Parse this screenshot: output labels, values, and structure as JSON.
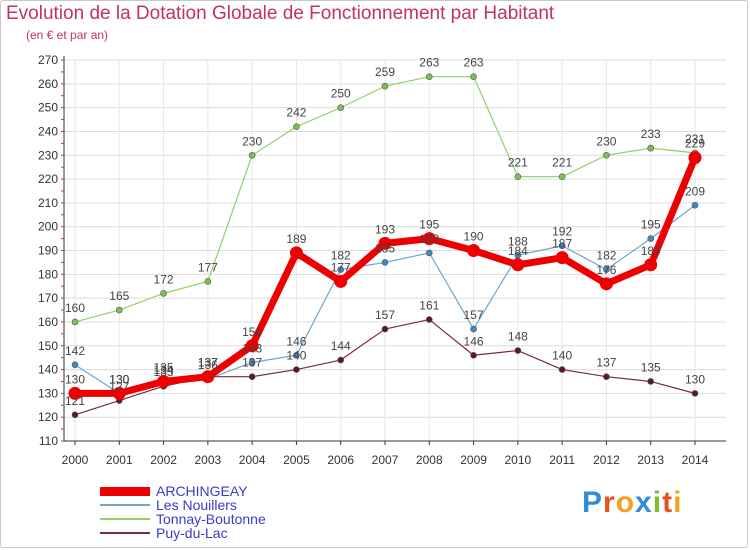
{
  "title": "Evolution de la Dotation Globale de Fonctionnement par Habitant",
  "subtitle": "(en € et par an)",
  "brand": {
    "text": "Proxiti",
    "letters": [
      {
        "ch": "P",
        "color": "#2f8fd6"
      },
      {
        "ch": "r",
        "color": "#e8521f"
      },
      {
        "ch": "o",
        "color": "#f4a11d"
      },
      {
        "ch": "x",
        "color": "#2f8fd6"
      },
      {
        "ch": "i",
        "color": "#7cbd2a"
      },
      {
        "ch": "t",
        "color": "#e8521f"
      },
      {
        "ch": "i",
        "color": "#f4a11d"
      }
    ]
  },
  "chart_data": {
    "type": "line",
    "x": [
      2000,
      2001,
      2002,
      2003,
      2004,
      2005,
      2006,
      2007,
      2008,
      2009,
      2010,
      2011,
      2012,
      2013,
      2014
    ],
    "ylim": [
      110,
      270
    ],
    "yticks": [
      110,
      120,
      130,
      140,
      150,
      160,
      170,
      180,
      190,
      200,
      210,
      220,
      230,
      240,
      250,
      260,
      270
    ],
    "grid": true,
    "legend_position": "bottom-left",
    "series": [
      {
        "name": "Tonnay-Boutonne",
        "color": "#8fd16b",
        "line_width": 1.2,
        "marker_color": "#7cc04f",
        "values": [
          160,
          165,
          172,
          177,
          230,
          242,
          250,
          259,
          263,
          263,
          221,
          221,
          230,
          233,
          231
        ]
      },
      {
        "name": "Les Nouillers",
        "color": "#6ea6d2",
        "line_width": 1.2,
        "marker_color": "#3f86c6",
        "values": [
          142,
          130,
          134,
          136,
          143,
          146,
          182,
          185,
          189,
          157,
          188,
          192,
          182,
          195,
          209
        ]
      },
      {
        "name": "Puy-du-Lac",
        "color": "#7a2c36",
        "line_width": 1.2,
        "marker_color": "#5a1a22",
        "values": [
          121,
          127,
          133,
          137,
          137,
          140,
          144,
          157,
          161,
          146,
          148,
          140,
          137,
          135,
          130
        ]
      },
      {
        "name": "ARCHINGEAY",
        "color": "#ee0000",
        "line_width": 7,
        "marker_color": "#ee0000",
        "values": [
          130,
          130,
          135,
          137,
          150,
          189,
          177,
          193,
          195,
          190,
          184,
          187,
          176,
          184,
          229
        ]
      }
    ],
    "legend_order": [
      "ARCHINGEAY",
      "Les Nouillers",
      "Tonnay-Boutonne",
      "Puy-du-Lac"
    ]
  }
}
